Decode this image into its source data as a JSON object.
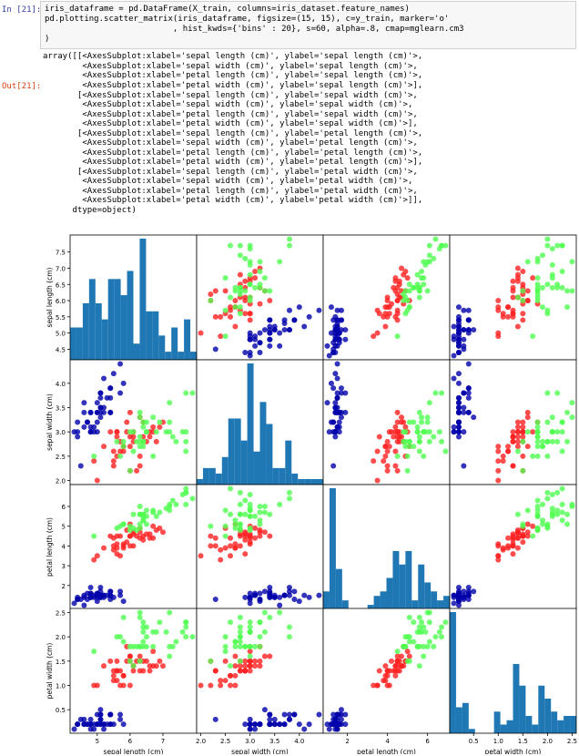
{
  "input_prompt": "In [21]:",
  "output_prompt": "Out[21]:",
  "code_lines": [
    "iris_dataframe = pd.DataFrame(X_train, columns=iris_dataset.feature_names)",
    "pd.plotting.scatter_matrix(iris_dataframe, figsize=(15, 15), c=y_train, marker='o'",
    "                          , hist_kwds={'bins' : 20}, s=60, alpha=.8, cmap=mglearn.cm3",
    ")"
  ],
  "output_lines": [
    "array([[<AxesSubplot:xlabel='sepal length (cm)', ylabel='sepal length (cm)'>,",
    "        <AxesSubplot:xlabel='sepal width (cm)', ylabel='sepal length (cm)'>,",
    "        <AxesSubplot:xlabel='petal length (cm)', ylabel='sepal length (cm)'>,",
    "        <AxesSubplot:xlabel='petal width (cm)', ylabel='sepal length (cm)'>],",
    "       [<AxesSubplot:xlabel='sepal length (cm)', ylabel='sepal width (cm)'>,",
    "        <AxesSubplot:xlabel='sepal width (cm)', ylabel='sepal width (cm)'>,",
    "        <AxesSubplot:xlabel='petal length (cm)', ylabel='sepal width (cm)'>,",
    "        <AxesSubplot:xlabel='petal width (cm)', ylabel='sepal width (cm)'>],",
    "       [<AxesSubplot:xlabel='sepal length (cm)', ylabel='petal length (cm)'>,",
    "        <AxesSubplot:xlabel='sepal width (cm)', ylabel='petal length (cm)'>,",
    "        <AxesSubplot:xlabel='petal length (cm)', ylabel='petal length (cm)'>,",
    "        <AxesSubplot:xlabel='petal width (cm)', ylabel='petal length (cm)'>],",
    "       [<AxesSubplot:xlabel='sepal length (cm)', ylabel='petal width (cm)'>,",
    "        <AxesSubplot:xlabel='sepal width (cm)', ylabel='petal width (cm)'>,",
    "        <AxesSubplot:xlabel='petal length (cm)', ylabel='petal width (cm)'>,",
    "        <AxesSubplot:xlabel='petal width (cm)', ylabel='petal width (cm)'>]],",
    "      dtype=object)"
  ],
  "colors": {
    "in_prompt": "#303f9f",
    "out_prompt": "#d84315",
    "hist_bar": "#1f77b4",
    "class_0": "#0000aa",
    "class_1": "#ff2020",
    "class_2": "#50ff50"
  },
  "chart_data": {
    "type": "scatter",
    "title": "",
    "variables": [
      "sepal length (cm)",
      "sepal width (cm)",
      "petal length (cm)",
      "petal width (cm)"
    ],
    "ranges": [
      [
        4.3,
        7.9
      ],
      [
        2.0,
        4.4
      ],
      [
        1.0,
        6.9
      ],
      [
        0.1,
        2.5
      ]
    ],
    "ticks": [
      [
        4.5,
        5.0,
        5.5,
        6.0,
        6.5,
        7.0,
        7.5
      ],
      [
        2.0,
        2.5,
        3.0,
        3.5,
        4.0
      ],
      [
        2,
        3,
        4,
        5,
        6
      ],
      [
        0.5,
        1.0,
        1.5,
        2.0,
        2.5
      ]
    ],
    "bottom_tick_labels": [
      [
        "5",
        "6",
        "7"
      ],
      [
        "2.0",
        "2.5",
        "3.0",
        "3.5",
        "4.0"
      ],
      [
        "2",
        "4",
        "6"
      ],
      [
        "0.5",
        "1.0",
        "1.5",
        "2.0",
        "2.5"
      ]
    ],
    "bottom_tick_values": [
      [
        5,
        6,
        7
      ],
      [
        2.0,
        2.5,
        3.0,
        3.5,
        4.0
      ],
      [
        2,
        4,
        6
      ],
      [
        0.5,
        1.0,
        1.5,
        2.0,
        2.5
      ]
    ],
    "left_tick_labels": [
      [
        "4.5",
        "5.0",
        "5.5",
        "6.0",
        "6.5",
        "7.0",
        "7.5"
      ],
      [
        "2.0",
        "2.5",
        "3.0",
        "3.5",
        "4.0"
      ],
      [
        "2",
        "3",
        "4",
        "5",
        "6"
      ],
      [
        "0.5",
        "1.0",
        "1.5",
        "2.0",
        "2.5"
      ]
    ],
    "hist_bins": 20,
    "classes": [
      0,
      1,
      2
    ],
    "points": [
      [
        5.1,
        3.5,
        1.4,
        0.2,
        0
      ],
      [
        4.9,
        3.0,
        1.4,
        0.2,
        0
      ],
      [
        4.7,
        3.2,
        1.3,
        0.2,
        0
      ],
      [
        4.6,
        3.1,
        1.5,
        0.2,
        0
      ],
      [
        5.0,
        3.6,
        1.4,
        0.2,
        0
      ],
      [
        5.4,
        3.9,
        1.7,
        0.4,
        0
      ],
      [
        4.6,
        3.4,
        1.4,
        0.3,
        0
      ],
      [
        5.0,
        3.4,
        1.5,
        0.2,
        0
      ],
      [
        4.4,
        2.9,
        1.4,
        0.2,
        0
      ],
      [
        4.9,
        3.1,
        1.5,
        0.1,
        0
      ],
      [
        5.4,
        3.7,
        1.5,
        0.2,
        0
      ],
      [
        4.8,
        3.4,
        1.6,
        0.2,
        0
      ],
      [
        4.8,
        3.0,
        1.4,
        0.1,
        0
      ],
      [
        4.3,
        3.0,
        1.1,
        0.1,
        0
      ],
      [
        5.8,
        4.0,
        1.2,
        0.2,
        0
      ],
      [
        5.7,
        4.4,
        1.5,
        0.4,
        0
      ],
      [
        5.4,
        3.9,
        1.3,
        0.4,
        0
      ],
      [
        5.1,
        3.5,
        1.4,
        0.3,
        0
      ],
      [
        5.7,
        3.8,
        1.7,
        0.3,
        0
      ],
      [
        5.1,
        3.8,
        1.5,
        0.3,
        0
      ],
      [
        5.4,
        3.4,
        1.7,
        0.2,
        0
      ],
      [
        5.1,
        3.7,
        1.5,
        0.4,
        0
      ],
      [
        4.6,
        3.6,
        1.0,
        0.2,
        0
      ],
      [
        5.1,
        3.3,
        1.7,
        0.5,
        0
      ],
      [
        4.8,
        3.4,
        1.9,
        0.2,
        0
      ],
      [
        5.0,
        3.0,
        1.6,
        0.2,
        0
      ],
      [
        5.0,
        3.4,
        1.6,
        0.4,
        0
      ],
      [
        5.2,
        3.5,
        1.5,
        0.2,
        0
      ],
      [
        5.2,
        3.4,
        1.4,
        0.2,
        0
      ],
      [
        4.7,
        3.2,
        1.6,
        0.2,
        0
      ],
      [
        4.8,
        3.1,
        1.6,
        0.2,
        0
      ],
      [
        5.4,
        3.4,
        1.5,
        0.4,
        0
      ],
      [
        5.2,
        4.1,
        1.5,
        0.1,
        0
      ],
      [
        5.5,
        4.2,
        1.4,
        0.2,
        0
      ],
      [
        5.0,
        3.2,
        1.2,
        0.2,
        0
      ],
      [
        4.4,
        3.0,
        1.3,
        0.2,
        0
      ],
      [
        5.1,
        3.4,
        1.5,
        0.2,
        0
      ],
      [
        4.5,
        2.3,
        1.3,
        0.3,
        0
      ],
      [
        4.4,
        3.2,
        1.3,
        0.2,
        0
      ],
      [
        5.1,
        3.8,
        1.9,
        0.4,
        0
      ],
      [
        4.8,
        3.0,
        1.4,
        0.3,
        0
      ],
      [
        5.3,
        3.7,
        1.5,
        0.2,
        0
      ],
      [
        7.0,
        3.2,
        4.7,
        1.4,
        1
      ],
      [
        6.4,
        3.2,
        4.5,
        1.5,
        1
      ],
      [
        6.9,
        3.1,
        4.9,
        1.5,
        1
      ],
      [
        5.5,
        2.3,
        4.0,
        1.3,
        1
      ],
      [
        6.5,
        2.8,
        4.6,
        1.5,
        1
      ],
      [
        5.7,
        2.8,
        4.5,
        1.3,
        1
      ],
      [
        6.3,
        3.3,
        4.7,
        1.6,
        1
      ],
      [
        4.9,
        2.4,
        3.3,
        1.0,
        1
      ],
      [
        6.6,
        2.9,
        4.6,
        1.3,
        1
      ],
      [
        5.2,
        2.7,
        3.9,
        1.4,
        1
      ],
      [
        5.0,
        2.0,
        3.5,
        1.0,
        1
      ],
      [
        5.9,
        3.0,
        4.2,
        1.5,
        1
      ],
      [
        6.0,
        2.2,
        4.0,
        1.0,
        1
      ],
      [
        6.1,
        2.9,
        4.7,
        1.4,
        1
      ],
      [
        5.6,
        2.9,
        3.6,
        1.3,
        1
      ],
      [
        6.7,
        3.1,
        4.4,
        1.4,
        1
      ],
      [
        5.6,
        3.0,
        4.5,
        1.5,
        1
      ],
      [
        5.8,
        2.7,
        4.1,
        1.0,
        1
      ],
      [
        6.2,
        2.2,
        4.5,
        1.5,
        1
      ],
      [
        5.6,
        2.5,
        3.9,
        1.1,
        1
      ],
      [
        5.9,
        3.2,
        4.8,
        1.8,
        1
      ],
      [
        6.1,
        2.8,
        4.0,
        1.3,
        1
      ],
      [
        6.3,
        2.5,
        4.9,
        1.5,
        1
      ],
      [
        6.4,
        2.9,
        4.3,
        1.3,
        1
      ],
      [
        6.6,
        3.0,
        4.4,
        1.4,
        1
      ],
      [
        6.8,
        2.8,
        4.8,
        1.4,
        1
      ],
      [
        6.7,
        3.0,
        5.0,
        1.7,
        1
      ],
      [
        6.0,
        2.9,
        4.5,
        1.5,
        1
      ],
      [
        5.7,
        2.6,
        3.5,
        1.0,
        1
      ],
      [
        5.5,
        2.4,
        3.8,
        1.1,
        1
      ],
      [
        5.8,
        2.7,
        3.9,
        1.2,
        1
      ],
      [
        6.0,
        2.7,
        5.1,
        1.6,
        1
      ],
      [
        5.4,
        3.0,
        4.5,
        1.5,
        1
      ],
      [
        6.0,
        3.4,
        4.5,
        1.6,
        1
      ],
      [
        6.3,
        2.3,
        4.4,
        1.3,
        1
      ],
      [
        5.6,
        3.0,
        4.1,
        1.3,
        1
      ],
      [
        5.5,
        2.6,
        4.4,
        1.2,
        1
      ],
      [
        6.1,
        3.0,
        4.6,
        1.4,
        1
      ],
      [
        5.8,
        2.6,
        4.0,
        1.2,
        1
      ],
      [
        6.3,
        3.3,
        6.0,
        2.5,
        2
      ],
      [
        5.8,
        2.7,
        5.1,
        1.9,
        2
      ],
      [
        7.1,
        3.0,
        5.9,
        2.1,
        2
      ],
      [
        6.3,
        2.9,
        5.6,
        1.8,
        2
      ],
      [
        6.5,
        3.0,
        5.8,
        2.2,
        2
      ],
      [
        7.6,
        3.0,
        6.6,
        2.1,
        2
      ],
      [
        4.9,
        2.5,
        4.5,
        1.7,
        2
      ],
      [
        7.3,
        2.9,
        6.3,
        1.8,
        2
      ],
      [
        6.7,
        2.5,
        5.8,
        1.8,
        2
      ],
      [
        7.2,
        3.6,
        6.1,
        2.5,
        2
      ],
      [
        6.5,
        3.2,
        5.1,
        2.0,
        2
      ],
      [
        6.4,
        2.7,
        5.3,
        1.9,
        2
      ],
      [
        6.8,
        3.0,
        5.5,
        2.1,
        2
      ],
      [
        5.7,
        2.5,
        5.0,
        2.0,
        2
      ],
      [
        5.8,
        2.8,
        5.1,
        2.4,
        2
      ],
      [
        6.4,
        3.2,
        5.3,
        2.3,
        2
      ],
      [
        6.5,
        3.0,
        5.5,
        1.8,
        2
      ],
      [
        7.7,
        3.8,
        6.7,
        2.2,
        2
      ],
      [
        7.7,
        2.6,
        6.9,
        2.3,
        2
      ],
      [
        6.0,
        2.2,
        5.0,
        1.5,
        2
      ],
      [
        6.9,
        3.2,
        5.7,
        2.3,
        2
      ],
      [
        5.6,
        2.8,
        4.9,
        2.0,
        2
      ],
      [
        7.7,
        2.8,
        6.7,
        2.0,
        2
      ],
      [
        6.3,
        2.7,
        4.9,
        1.8,
        2
      ],
      [
        6.7,
        3.3,
        5.7,
        2.1,
        2
      ],
      [
        7.2,
        3.2,
        6.0,
        1.8,
        2
      ],
      [
        6.2,
        2.8,
        4.8,
        1.8,
        2
      ],
      [
        6.1,
        3.0,
        4.9,
        1.8,
        2
      ],
      [
        6.4,
        2.8,
        5.6,
        2.1,
        2
      ],
      [
        7.2,
        3.0,
        5.8,
        1.6,
        2
      ],
      [
        7.4,
        2.8,
        6.1,
        1.9,
        2
      ],
      [
        7.9,
        3.8,
        6.4,
        2.0,
        2
      ],
      [
        6.4,
        2.8,
        5.6,
        2.2,
        2
      ],
      [
        6.3,
        2.8,
        5.1,
        1.5,
        2
      ],
      [
        6.1,
        2.6,
        5.6,
        1.4,
        2
      ],
      [
        7.7,
        3.0,
        6.1,
        2.3,
        2
      ],
      [
        6.3,
        3.4,
        5.6,
        2.4,
        2
      ],
      [
        6.4,
        3.1,
        5.5,
        1.8,
        2
      ],
      [
        6.0,
        3.0,
        4.8,
        1.8,
        2
      ]
    ]
  }
}
